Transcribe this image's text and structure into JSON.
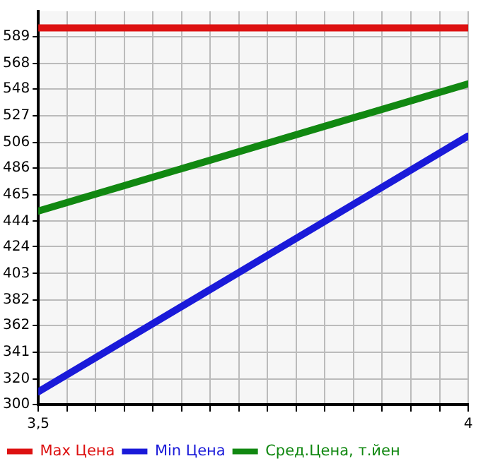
{
  "chart_data": {
    "type": "line",
    "x": [
      3.5,
      4
    ],
    "series": [
      {
        "name": "Max Цена",
        "color": "#dd1111",
        "values": [
          596,
          596
        ]
      },
      {
        "name": "Min Цена",
        "color": "#1a1ad9",
        "values": [
          310,
          511
        ]
      },
      {
        "name": "Сред.Цена, т.йен",
        "color": "#118811",
        "values": [
          452,
          552
        ]
      }
    ],
    "xlim": [
      3.5,
      4
    ],
    "xticks": [
      {
        "value": 3.5,
        "label": "3,5"
      },
      {
        "value": 3.5333,
        "label": null
      },
      {
        "value": 3.5667,
        "label": null
      },
      {
        "value": 3.6,
        "label": null
      },
      {
        "value": 3.6333,
        "label": null
      },
      {
        "value": 3.6667,
        "label": null
      },
      {
        "value": 3.7,
        "label": null
      },
      {
        "value": 3.7333,
        "label": null
      },
      {
        "value": 3.7667,
        "label": null
      },
      {
        "value": 3.8,
        "label": null
      },
      {
        "value": 3.8333,
        "label": null
      },
      {
        "value": 3.8667,
        "label": null
      },
      {
        "value": 3.9,
        "label": null
      },
      {
        "value": 3.9333,
        "label": null
      },
      {
        "value": 3.9667,
        "label": null
      },
      4
    ],
    "ylim": [
      300,
      609
    ],
    "yticks": [
      300,
      320,
      341,
      362,
      382,
      403,
      424,
      444,
      465,
      486,
      506,
      527,
      548,
      568,
      589
    ],
    "grid": true,
    "legend": "bottom",
    "marker": "none",
    "line_style": "solid"
  }
}
